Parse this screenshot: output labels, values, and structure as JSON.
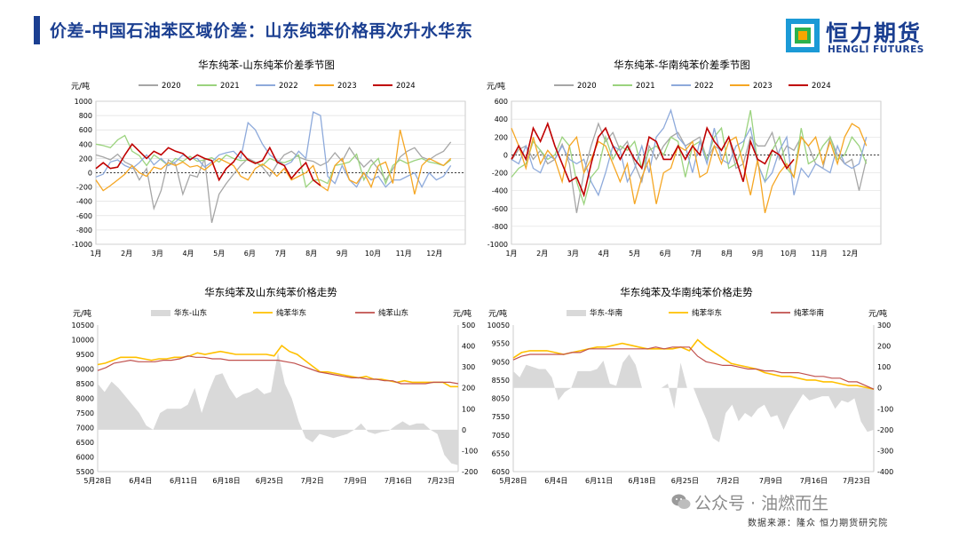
{
  "header": {
    "title": "价差-中国石油苯区域价差：山东纯苯价格再次升水华东",
    "logo_cn": "恒力期货",
    "logo_en": "HENGLI FUTURES"
  },
  "footer": {
    "watermark": "公众号 · 油燃而生",
    "source": "数据来源：隆众  恒力期货研究院"
  },
  "colors": {
    "brand": "#1b3f91",
    "y2020": "#a6a6a6",
    "y2021": "#9bd37e",
    "y2022": "#8eaadb",
    "y2023": "#f5a623",
    "y2024": "#c00000",
    "spread_area": "#d9d9d9",
    "east": "#ffc000",
    "local": "#c0504d"
  },
  "chart_data": [
    {
      "type": "line",
      "title": "华东纯苯-山东纯苯价差季节图",
      "ylabel": "元/吨",
      "ylim": [
        -1000,
        1000
      ],
      "yticks": [
        -1000,
        -800,
        -600,
        -400,
        -200,
        0,
        200,
        400,
        600,
        800,
        1000
      ],
      "xticks": [
        "1月",
        "2月",
        "3月",
        "4月",
        "5月",
        "6月",
        "7月",
        "8月",
        "9月",
        "10月",
        "11月",
        "12月"
      ],
      "series": [
        {
          "name": "2020",
          "values": [
            250,
            220,
            180,
            260,
            150,
            100,
            -100,
            60,
            -500,
            -250,
            180,
            120,
            -300,
            -30,
            -60,
            200,
            -700,
            -300,
            -150,
            -20,
            100,
            200,
            150,
            80,
            -50,
            120,
            250,
            300,
            220,
            180,
            160,
            100,
            150,
            280,
            160,
            350,
            200,
            80,
            180,
            50,
            -100,
            50,
            220,
            300,
            350,
            220,
            180,
            250,
            300,
            430
          ]
        },
        {
          "name": "2021",
          "values": [
            400,
            380,
            350,
            460,
            520,
            300,
            240,
            100,
            250,
            180,
            100,
            200,
            160,
            230,
            160,
            180,
            210,
            150,
            250,
            200,
            170,
            180,
            140,
            100,
            200,
            160,
            140,
            180,
            250,
            -200,
            -100,
            -100,
            -150,
            100,
            120,
            150,
            260,
            -100,
            100,
            200,
            -150,
            100,
            180,
            130,
            170,
            200,
            150,
            130,
            100,
            180
          ]
        },
        {
          "name": "2022",
          "values": [
            -60,
            -20,
            150,
            180,
            100,
            60,
            140,
            250,
            110,
            200,
            100,
            150,
            250,
            200,
            200,
            80,
            150,
            250,
            280,
            300,
            200,
            700,
            600,
            400,
            250,
            180,
            100,
            150,
            300,
            200,
            850,
            800,
            -50,
            -150,
            100,
            -100,
            -200,
            0,
            -100,
            -50,
            -200,
            -100,
            -100,
            -50,
            0,
            -200,
            0,
            -100,
            -50,
            100
          ]
        },
        {
          "name": "2023",
          "values": [
            -100,
            -250,
            -180,
            -100,
            -20,
            100,
            0,
            -50,
            80,
            50,
            140,
            100,
            150,
            80,
            100,
            40,
            120,
            200,
            150,
            100,
            -50,
            -100,
            60,
            120,
            50,
            -50,
            60,
            -100,
            -50,
            0,
            100,
            -180,
            -250,
            100,
            200,
            -100,
            -150,
            0,
            -200,
            100,
            150,
            -150,
            600,
            200,
            -300,
            100,
            200,
            150,
            100,
            200
          ]
        },
        {
          "name": "2024",
          "values": [
            60,
            140,
            60,
            80,
            250,
            400,
            300,
            200,
            300,
            250,
            350,
            300,
            270,
            180,
            250,
            200,
            170,
            -100,
            60,
            150,
            300,
            180,
            130,
            170,
            350,
            150,
            100,
            -80,
            40,
            140,
            -100,
            -180
          ]
        }
      ]
    },
    {
      "type": "line",
      "title": "华东纯苯-华南纯苯价差季节图",
      "ylabel": "元/吨",
      "ylim": [
        -1000,
        600
      ],
      "yticks": [
        -1000,
        -800,
        -600,
        -400,
        -200,
        0,
        200,
        400,
        600
      ],
      "xticks": [
        "1月",
        "2月",
        "3月",
        "4月",
        "5月",
        "6月",
        "7月",
        "8月",
        "9月",
        "10月",
        "11月",
        "12月"
      ],
      "series": [
        {
          "name": "2020",
          "values": [
            -60,
            60,
            100,
            -50,
            50,
            -100,
            -50,
            120,
            -100,
            -650,
            -200,
            100,
            350,
            150,
            250,
            50,
            150,
            -100,
            -300,
            100,
            -50,
            100,
            200,
            250,
            100,
            150,
            200,
            -50,
            100,
            50,
            200,
            -150,
            -100,
            200,
            100,
            100,
            250,
            -50,
            100,
            50,
            200,
            100,
            -100,
            -150,
            200,
            0,
            -100,
            -50,
            -400,
            -50
          ]
        },
        {
          "name": "2021",
          "values": [
            -250,
            -150,
            -100,
            150,
            50,
            -50,
            0,
            200,
            100,
            -300,
            -550,
            -250,
            -150,
            200,
            -50,
            100,
            50,
            150,
            -150,
            50,
            100,
            0,
            200,
            150,
            -250,
            100,
            150,
            -50,
            200,
            300,
            -150,
            -100,
            100,
            500,
            -100,
            -300,
            50,
            200,
            -150,
            -250,
            300,
            -100,
            -50,
            100,
            200,
            -50,
            0,
            200,
            100,
            -100
          ]
        },
        {
          "name": "2022",
          "values": [
            -50,
            -100,
            100,
            -150,
            -200,
            0,
            -50,
            100,
            -50,
            -100,
            -50,
            -300,
            -450,
            -200,
            100,
            50,
            -300,
            -150,
            100,
            -200,
            200,
            300,
            500,
            200,
            100,
            -200,
            150,
            -100,
            300,
            -50,
            -100,
            100,
            150,
            300,
            -100,
            -300,
            -200,
            50,
            200,
            -450,
            -150,
            -250,
            -100,
            -150,
            -200,
            100,
            -100,
            -150,
            -100,
            200
          ]
        },
        {
          "name": "2023",
          "values": [
            300,
            100,
            -150,
            200,
            -100,
            50,
            -50,
            -300,
            100,
            200,
            -200,
            -50,
            150,
            100,
            -100,
            -300,
            -100,
            -550,
            -250,
            -50,
            -550,
            -200,
            -150,
            100,
            50,
            150,
            -250,
            -200,
            100,
            -100,
            150,
            200,
            -100,
            -450,
            -50,
            -650,
            -350,
            -200,
            -100,
            -250,
            200,
            100,
            200,
            -100,
            150,
            -100,
            200,
            350,
            300,
            100
          ]
        },
        {
          "name": "2024",
          "values": [
            -50,
            100,
            -50,
            300,
            150,
            350,
            100,
            -100,
            -300,
            -250,
            -450,
            -100,
            200,
            300,
            100,
            -50,
            100,
            -50,
            -150,
            200,
            150,
            -50,
            -50,
            100,
            -50,
            100,
            0,
            300,
            150,
            50,
            200,
            -50,
            -300,
            150,
            -50,
            -100,
            50,
            0,
            -150,
            -50
          ]
        }
      ]
    },
    {
      "type": "line",
      "title": "华东纯苯及山东纯苯价格走势",
      "ylabel": "元/吨",
      "y2label": "元/吨",
      "ylim": [
        5500,
        10500
      ],
      "yticks": [
        5500,
        6000,
        6500,
        7000,
        7500,
        8000,
        8500,
        9000,
        9500,
        10000,
        10500
      ],
      "y2lim": [
        -200,
        500
      ],
      "y2ticks": [
        -200,
        -100,
        0,
        100,
        200,
        300,
        400,
        500
      ],
      "xticks": [
        "5月28日",
        "6月4日",
        "6月11日",
        "6月18日",
        "6月25日",
        "7月2日",
        "7月9日",
        "7月16日",
        "7月23日"
      ],
      "series": [
        {
          "name": "华东-山东",
          "axis": "right",
          "values": [
            220,
            180,
            230,
            200,
            160,
            120,
            80,
            20,
            0,
            80,
            100,
            100,
            100,
            120,
            200,
            80,
            180,
            260,
            270,
            200,
            150,
            170,
            180,
            200,
            170,
            180,
            370,
            220,
            150,
            40,
            -40,
            -60,
            -20,
            -30,
            -40,
            -30,
            -20,
            0,
            30,
            -10,
            -20,
            -10,
            -5,
            20,
            40,
            20,
            30,
            30,
            0,
            -20,
            -120,
            -160,
            -170
          ]
        },
        {
          "name": "纯苯华东",
          "axis": "left",
          "values": [
            9150,
            9200,
            9300,
            9400,
            9400,
            9400,
            9350,
            9300,
            9350,
            9350,
            9400,
            9400,
            9450,
            9550,
            9500,
            9550,
            9600,
            9550,
            9500,
            9500,
            9500,
            9500,
            9500,
            9450,
            9800,
            9600,
            9500,
            9300,
            9100,
            8900,
            8900,
            8850,
            8800,
            8750,
            8700,
            8750,
            8650,
            8650,
            8600,
            8550,
            8600,
            8550,
            8550,
            8550,
            8550,
            8550,
            8400,
            8400
          ]
        },
        {
          "name": "纯苯山东",
          "axis": "left",
          "values": [
            8950,
            9050,
            9200,
            9250,
            9300,
            9250,
            9250,
            9250,
            9300,
            9300,
            9350,
            9450,
            9400,
            9400,
            9350,
            9350,
            9300,
            9300,
            9300,
            9300,
            9300,
            9300,
            9300,
            9250,
            9200,
            9100,
            9000,
            8900,
            8850,
            8800,
            8750,
            8700,
            8700,
            8650,
            8650,
            8600,
            8600,
            8500,
            8500,
            8500,
            8500,
            8550,
            8550,
            8550,
            8500
          ]
        }
      ]
    },
    {
      "type": "line",
      "title": "华东纯苯及华南纯苯价格走势",
      "ylabel": "元/吨",
      "y2label": "元/吨",
      "ylim": [
        6050,
        10050
      ],
      "yticks": [
        6050,
        6550,
        7050,
        7550,
        8050,
        8550,
        9050,
        9550,
        10050
      ],
      "y2lim": [
        -400,
        300
      ],
      "y2ticks": [
        -400,
        -300,
        -200,
        -100,
        0,
        100,
        200,
        300
      ],
      "xticks": [
        "5月28日",
        "6月4日",
        "6月11日",
        "6月18日",
        "6月25日",
        "7月2日",
        "7月9日",
        "7月16日",
        "7月23日"
      ],
      "series": [
        {
          "name": "华东-华南",
          "axis": "right",
          "values": [
            80,
            50,
            110,
            100,
            90,
            90,
            50,
            -60,
            -20,
            0,
            80,
            80,
            80,
            90,
            130,
            20,
            10,
            120,
            160,
            110,
            0,
            0,
            0,
            0,
            20,
            -100,
            120,
            0,
            0,
            -80,
            -150,
            -240,
            -260,
            -120,
            -80,
            -160,
            -120,
            -140,
            -100,
            -80,
            -140,
            -130,
            -200,
            -130,
            -80,
            -30,
            -60,
            -50,
            -40,
            -40,
            -100,
            -60,
            -70,
            -50,
            -160,
            -210,
            -200
          ]
        },
        {
          "name": "纯苯华东",
          "axis": "left",
          "values": [
            9150,
            9300,
            9350,
            9350,
            9350,
            9300,
            9250,
            9300,
            9350,
            9400,
            9450,
            9450,
            9500,
            9550,
            9500,
            9450,
            9400,
            9400,
            9400,
            9400,
            9450,
            9350,
            9650,
            9450,
            9300,
            9150,
            9000,
            8950,
            8900,
            8850,
            8750,
            8700,
            8650,
            8650,
            8600,
            8550,
            8550,
            8500,
            8500,
            8450,
            8400,
            8400,
            8350,
            8300
          ]
        },
        {
          "name": "纯苯华南",
          "axis": "left",
          "values": [
            9100,
            9200,
            9250,
            9250,
            9250,
            9250,
            9250,
            9300,
            9300,
            9400,
            9400,
            9400,
            9400,
            9400,
            9400,
            9400,
            9400,
            9450,
            9400,
            9450,
            9450,
            9450,
            9200,
            9050,
            9000,
            8950,
            8950,
            8900,
            8850,
            8850,
            8800,
            8800,
            8750,
            8750,
            8750,
            8700,
            8650,
            8650,
            8600,
            8600,
            8500,
            8500,
            8400,
            8300
          ]
        }
      ]
    }
  ]
}
